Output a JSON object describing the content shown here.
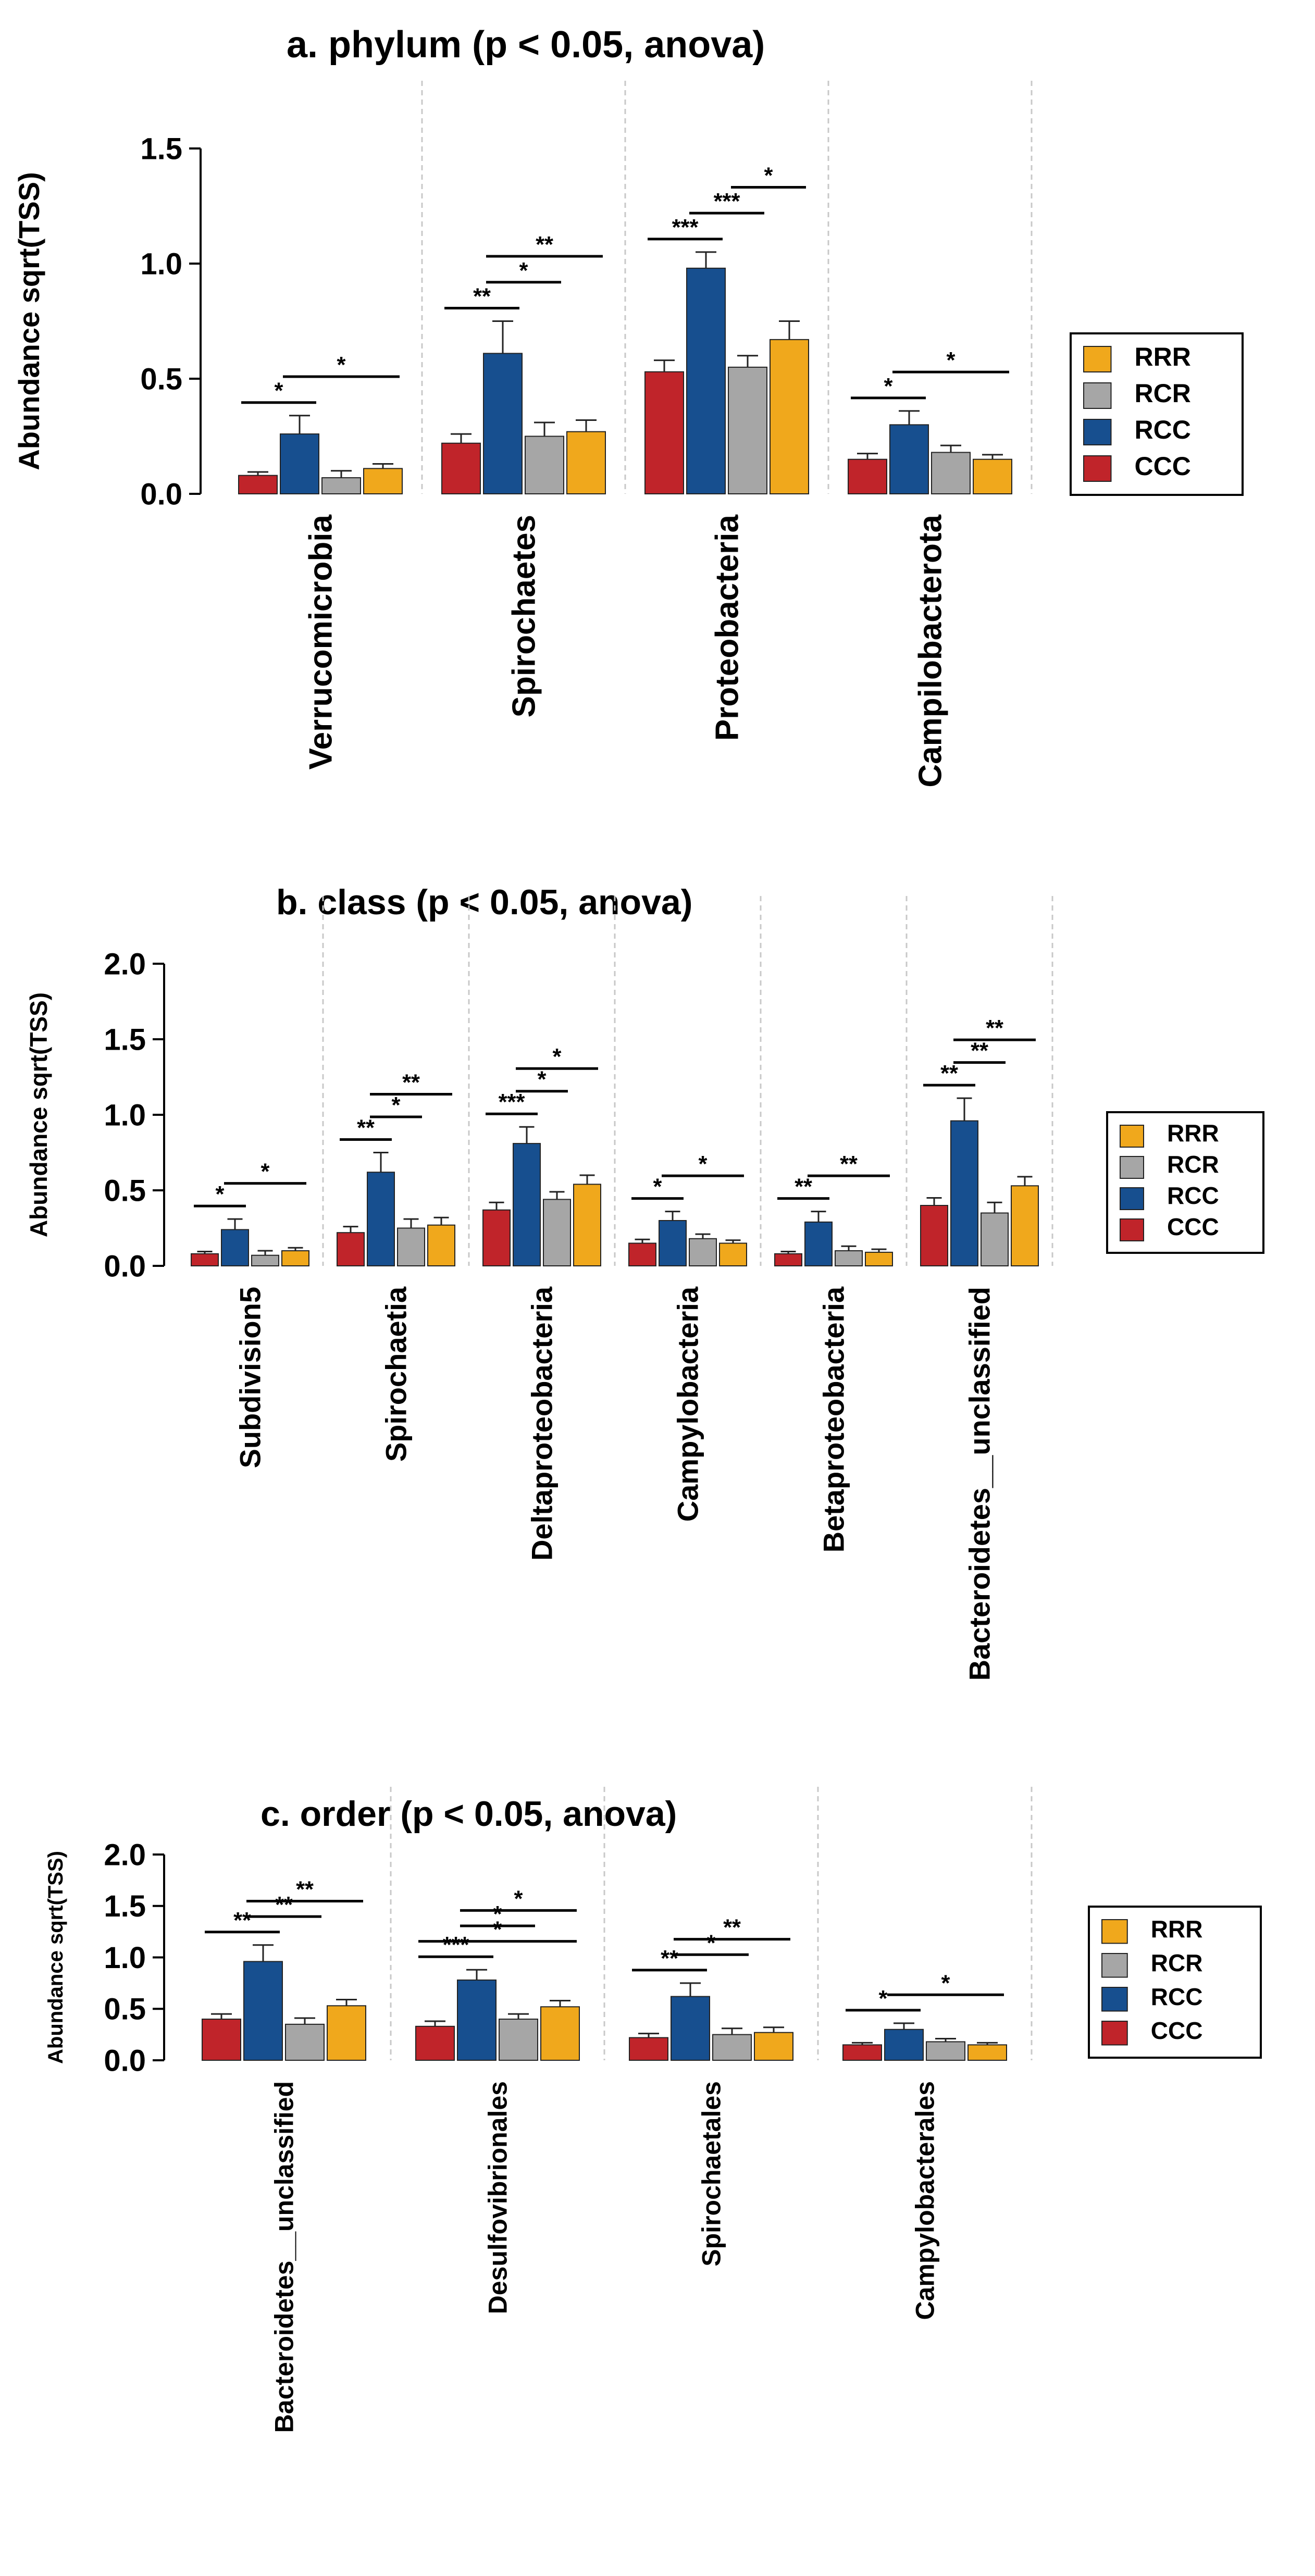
{
  "colors": {
    "CCC": "#c0242a",
    "RCC": "#174f8f",
    "RCR": "#a6a6a6",
    "RRR": "#f0a81c"
  },
  "legend": [
    "RRR",
    "RCR",
    "RCC",
    "CCC"
  ],
  "chart_data": [
    {
      "type": "bar",
      "title": "a. phylum (p < 0.05, anova)",
      "ylabel": "Abundance sqrt(TSS)",
      "ylim": [
        0,
        1.5
      ],
      "yticks": [
        "0.0",
        "0.5",
        "1.0",
        "1.5"
      ],
      "categories": [
        "Verrucomicrobia",
        "Spirochaetes",
        "Proteobacteria",
        "Campilobacterota"
      ],
      "series": [
        {
          "name": "CCC",
          "values": [
            0.08,
            0.22,
            0.53,
            0.15
          ],
          "errors": [
            0.015,
            0.04,
            0.05,
            0.025
          ]
        },
        {
          "name": "RCC",
          "values": [
            0.26,
            0.61,
            0.98,
            0.3
          ],
          "errors": [
            0.08,
            0.14,
            0.07,
            0.06
          ]
        },
        {
          "name": "RCR",
          "values": [
            0.07,
            0.25,
            0.55,
            0.18
          ],
          "errors": [
            0.03,
            0.06,
            0.05,
            0.03
          ]
        },
        {
          "name": "RRR",
          "values": [
            0.11,
            0.27,
            0.67,
            0.15
          ],
          "errors": [
            0.02,
            0.05,
            0.08,
            0.02
          ]
        }
      ],
      "significance": [
        {
          "category": 0,
          "from": "CCC",
          "to": "RCC",
          "label": "*",
          "level": 0
        },
        {
          "category": 0,
          "from": "RCC",
          "to": "RRR",
          "label": "*",
          "level": 1
        },
        {
          "category": 1,
          "from": "CCC",
          "to": "RCC",
          "label": "**",
          "level": 0
        },
        {
          "category": 1,
          "from": "RCC",
          "to": "RCR",
          "label": "*",
          "level": 1
        },
        {
          "category": 1,
          "from": "RCC",
          "to": "RRR",
          "label": "**",
          "level": 2
        },
        {
          "category": 2,
          "from": "CCC",
          "to": "RCC",
          "label": "***",
          "level": 0
        },
        {
          "category": 2,
          "from": "RCC",
          "to": "RCR",
          "label": "***",
          "level": 1
        },
        {
          "category": 2,
          "from": "RCR",
          "to": "RRR",
          "label": "*",
          "level": 2
        },
        {
          "category": 3,
          "from": "CCC",
          "to": "RCC",
          "label": "*",
          "level": 0
        },
        {
          "category": 3,
          "from": "RCC",
          "to": "RRR",
          "label": "*",
          "level": 1
        }
      ]
    },
    {
      "type": "bar",
      "title": "b. class (p < 0.05, anova)",
      "ylabel": "Abundance sqrt(TSS)",
      "ylim": [
        0,
        2.0
      ],
      "yticks": [
        "0.0",
        "0.5",
        "1.0",
        "1.5",
        "2.0"
      ],
      "categories": [
        "Subdivision5",
        "Spirochaetia",
        "Deltaproteobacteria",
        "Campylobacteria",
        "Betaproteobacteria",
        "Bacteroidetes__unclassified"
      ],
      "series": [
        {
          "name": "CCC",
          "values": [
            0.08,
            0.22,
            0.37,
            0.15,
            0.08,
            0.4
          ],
          "errors": [
            0.015,
            0.04,
            0.05,
            0.025,
            0.015,
            0.05
          ]
        },
        {
          "name": "RCC",
          "values": [
            0.24,
            0.62,
            0.81,
            0.3,
            0.29,
            0.96
          ],
          "errors": [
            0.07,
            0.13,
            0.11,
            0.06,
            0.07,
            0.15
          ]
        },
        {
          "name": "RCR",
          "values": [
            0.07,
            0.25,
            0.44,
            0.18,
            0.1,
            0.35
          ],
          "errors": [
            0.03,
            0.06,
            0.05,
            0.03,
            0.03,
            0.07
          ]
        },
        {
          "name": "RRR",
          "values": [
            0.1,
            0.27,
            0.54,
            0.15,
            0.09,
            0.53
          ],
          "errors": [
            0.02,
            0.05,
            0.06,
            0.02,
            0.02,
            0.06
          ]
        }
      ],
      "significance": [
        {
          "category": 0,
          "from": "CCC",
          "to": "RCC",
          "label": "*",
          "level": 0
        },
        {
          "category": 0,
          "from": "RCC",
          "to": "RRR",
          "label": "*",
          "level": 1
        },
        {
          "category": 1,
          "from": "CCC",
          "to": "RCC",
          "label": "**",
          "level": 0
        },
        {
          "category": 1,
          "from": "RCC",
          "to": "RCR",
          "label": "*",
          "level": 1
        },
        {
          "category": 1,
          "from": "RCC",
          "to": "RRR",
          "label": "**",
          "level": 2
        },
        {
          "category": 2,
          "from": "CCC",
          "to": "RCC",
          "label": "***",
          "level": 0
        },
        {
          "category": 2,
          "from": "RCC",
          "to": "RCR",
          "label": "*",
          "level": 1
        },
        {
          "category": 2,
          "from": "RCC",
          "to": "RRR",
          "label": "*",
          "level": 2
        },
        {
          "category": 3,
          "from": "CCC",
          "to": "RCC",
          "label": "*",
          "level": 0
        },
        {
          "category": 3,
          "from": "RCC",
          "to": "RRR",
          "label": "*",
          "level": 1
        },
        {
          "category": 4,
          "from": "CCC",
          "to": "RCC",
          "label": "**",
          "level": 0
        },
        {
          "category": 4,
          "from": "RCC",
          "to": "RRR",
          "label": "**",
          "level": 1
        },
        {
          "category": 5,
          "from": "CCC",
          "to": "RCC",
          "label": "**",
          "level": 0
        },
        {
          "category": 5,
          "from": "RCC",
          "to": "RCR",
          "label": "**",
          "level": 1
        },
        {
          "category": 5,
          "from": "RCC",
          "to": "RRR",
          "label": "**",
          "level": 2
        }
      ]
    },
    {
      "type": "bar",
      "title": "c. order (p < 0.05, anova)",
      "ylabel": "Abundance sqrt(TSS)",
      "ylim": [
        0,
        2.0
      ],
      "yticks": [
        "0.0",
        "0.5",
        "1.0",
        "1.5",
        "2.0"
      ],
      "categories": [
        "Bacteroidetes__unclassified",
        "Desulfovibrionales",
        "Spirochaetales",
        "Campylobacterales"
      ],
      "series": [
        {
          "name": "CCC",
          "values": [
            0.4,
            0.33,
            0.22,
            0.15
          ],
          "errors": [
            0.05,
            0.05,
            0.04,
            0.02
          ]
        },
        {
          "name": "RCC",
          "values": [
            0.96,
            0.78,
            0.62,
            0.3
          ],
          "errors": [
            0.16,
            0.1,
            0.13,
            0.06
          ]
        },
        {
          "name": "RCR",
          "values": [
            0.35,
            0.4,
            0.25,
            0.18
          ],
          "errors": [
            0.06,
            0.05,
            0.06,
            0.03
          ]
        },
        {
          "name": "RRR",
          "values": [
            0.53,
            0.52,
            0.27,
            0.15
          ],
          "errors": [
            0.06,
            0.06,
            0.05,
            0.02
          ]
        }
      ],
      "significance": [
        {
          "category": 0,
          "from": "CCC",
          "to": "RCC",
          "label": "**",
          "level": 0
        },
        {
          "category": 0,
          "from": "RCC",
          "to": "RCR",
          "label": "**",
          "level": 1
        },
        {
          "category": 0,
          "from": "RCC",
          "to": "RRR",
          "label": "**",
          "level": 2
        },
        {
          "category": 1,
          "from": "CCC",
          "to": "RCC",
          "label": "***",
          "level": 0
        },
        {
          "category": 1,
          "from": "CCC",
          "to": "RRR",
          "label": "*",
          "level": 1
        },
        {
          "category": 1,
          "from": "RCC",
          "to": "RCR",
          "label": "*",
          "level": 2
        },
        {
          "category": 1,
          "from": "RCC",
          "to": "RRR",
          "label": "*",
          "level": 3
        },
        {
          "category": 2,
          "from": "CCC",
          "to": "RCC",
          "label": "**",
          "level": 0
        },
        {
          "category": 2,
          "from": "RCC",
          "to": "RCR",
          "label": "*",
          "level": 1
        },
        {
          "category": 2,
          "from": "RCC",
          "to": "RRR",
          "label": "**",
          "level": 2
        },
        {
          "category": 3,
          "from": "CCC",
          "to": "RCC",
          "label": "*",
          "level": 0
        },
        {
          "category": 3,
          "from": "RCC",
          "to": "RRR",
          "label": "*",
          "level": 1
        }
      ]
    }
  ]
}
